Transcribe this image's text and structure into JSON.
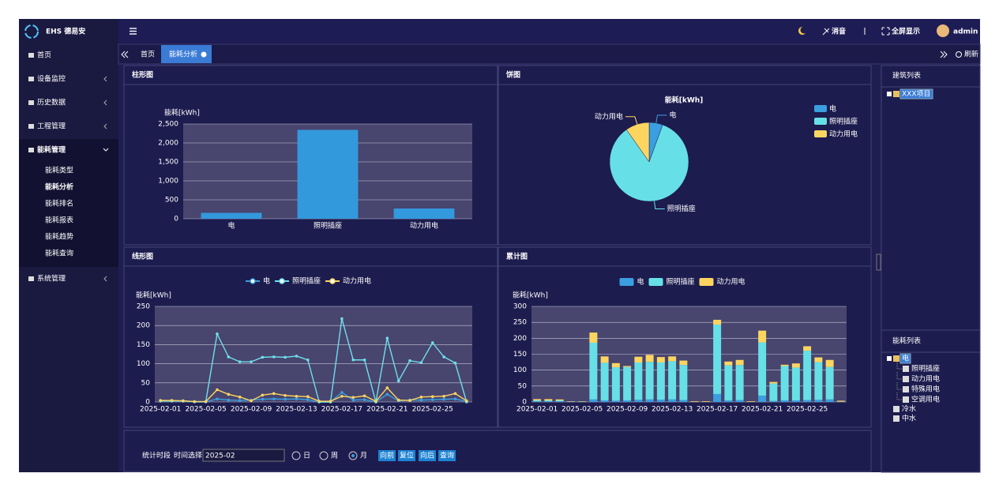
{
  "sidebar": {
    "brand": "EHS 德易安",
    "menu": [
      {
        "label": "首页"
      },
      {
        "label": "设备监控"
      },
      {
        "label": "历史数据"
      },
      {
        "label": "工程管理"
      },
      {
        "label": "能耗管理",
        "active_child": 1,
        "children": [
          "能耗类型",
          "能耗分析",
          "能耗排名",
          "能耗报表",
          "能耗趋势",
          "能耗查询"
        ]
      },
      {
        "label": "系统管理"
      }
    ]
  },
  "topbar": {
    "mute": "消音",
    "fullscreen": "全屏显示",
    "user": "admin"
  },
  "tabs": {
    "items": [
      "首页",
      "能耗分析"
    ],
    "active": 1,
    "refresh": "刷新"
  },
  "chart_data": [
    {
      "type": "bar",
      "panel_title": "柱形图",
      "y_label": "能耗[kWh]",
      "categories": [
        "电",
        "照明插座",
        "动力用电"
      ],
      "values": [
        155,
        2345,
        270
      ],
      "color": "#3399dd",
      "ylim": [
        0,
        2500
      ],
      "yticks": [
        0,
        500,
        {
          "value": 1000,
          "label": "1,000"
        },
        {
          "value": 1500,
          "label": "1,500"
        },
        {
          "value": 2000,
          "label": "2,000"
        },
        {
          "value": 2500,
          "label": "2,500"
        }
      ],
      "grid": true
    },
    {
      "type": "pie",
      "panel_title": "饼图",
      "title": "能耗[kWh]",
      "categories": [
        "电",
        "照明插座",
        "动力用电"
      ],
      "values": [
        155,
        2345,
        270
      ],
      "colors": [
        "#3a9ee0",
        "#66e0e6",
        "#fcd561"
      ]
    },
    {
      "type": "line",
      "panel_title": "线形图",
      "y_label": "能耗[kWh]",
      "categories": [
        "2025-02-01",
        null,
        null,
        null,
        "2025-02-05",
        null,
        null,
        null,
        "2025-02-09",
        null,
        null,
        null,
        "2025-02-13",
        null,
        null,
        null,
        "2025-02-17",
        null,
        null,
        null,
        "2025-02-21",
        null,
        null,
        null,
        "2025-02-25",
        null,
        null,
        null
      ],
      "series": [
        {
          "name": "电",
          "color": "#3a9ee0",
          "values": [
            2,
            2,
            2,
            0,
            0,
            8,
            5,
            4,
            5,
            7,
            8,
            7,
            8,
            6,
            0,
            0,
            25,
            5,
            6,
            0,
            20,
            3,
            5,
            5,
            6,
            7,
            8,
            1
          ]
        },
        {
          "name": "照明插座",
          "color": "#6ee0ea",
          "values": [
            3,
            3,
            3,
            1,
            1,
            178,
            118,
            105,
            105,
            117,
            118,
            117,
            120,
            110,
            0,
            0,
            218,
            110,
            110,
            0,
            167,
            55,
            108,
            103,
            155,
            118,
            102,
            0
          ]
        },
        {
          "name": "动力用电",
          "color": "#fcd561",
          "values": [
            4,
            4,
            3,
            1,
            1,
            32,
            20,
            13,
            3,
            18,
            22,
            17,
            15,
            14,
            2,
            2,
            15,
            12,
            16,
            2,
            37,
            5,
            4,
            13,
            14,
            15,
            22,
            3
          ]
        }
      ],
      "ylim": [
        0,
        250
      ],
      "yticks": [
        0,
        50,
        100,
        150,
        200,
        250
      ],
      "grid": true
    },
    {
      "type": "bar",
      "stacked": true,
      "panel_title": "累计图",
      "y_label": "能耗[kWh]",
      "categories": [
        "2025-02-01",
        null,
        null,
        null,
        "2025-02-05",
        null,
        null,
        null,
        "2025-02-09",
        null,
        null,
        null,
        "2025-02-13",
        null,
        null,
        null,
        "2025-02-17",
        null,
        null,
        null,
        "2025-02-21",
        null,
        null,
        null,
        "2025-02-25",
        null,
        null,
        null
      ],
      "series": [
        {
          "name": "电",
          "color": "#3a9ee0",
          "values": [
            2,
            2,
            2,
            0,
            0,
            8,
            5,
            4,
            5,
            7,
            8,
            7,
            8,
            6,
            0,
            0,
            25,
            5,
            6,
            0,
            20,
            3,
            5,
            5,
            6,
            7,
            8,
            1
          ]
        },
        {
          "name": "照明插座",
          "color": "#66e0e6",
          "values": [
            3,
            3,
            3,
            1,
            1,
            178,
            118,
            105,
            105,
            117,
            118,
            117,
            120,
            110,
            0,
            0,
            218,
            110,
            110,
            0,
            167,
            55,
            108,
            103,
            155,
            118,
            102,
            0
          ]
        },
        {
          "name": "动力用电",
          "color": "#fcd561",
          "values": [
            4,
            4,
            3,
            1,
            1,
            32,
            20,
            13,
            3,
            18,
            22,
            17,
            15,
            14,
            2,
            2,
            15,
            12,
            16,
            2,
            37,
            5,
            4,
            13,
            14,
            15,
            22,
            3
          ]
        }
      ],
      "ylim": [
        0,
        300
      ],
      "yticks": [
        0,
        50,
        100,
        150,
        200,
        250,
        300
      ],
      "grid": true
    }
  ],
  "form": {
    "period_label": "统计时段",
    "time_label": "时间选择",
    "time_value": "2025-02",
    "options": [
      "日",
      "周",
      "月"
    ],
    "selected": 2,
    "buttons": [
      "向前",
      "复位",
      "向后",
      "查询"
    ]
  },
  "building_list": {
    "title": "建筑列表",
    "nodes": [
      "XXX项目"
    ]
  },
  "energy_list": {
    "title": "能耗列表",
    "nodes": [
      {
        "label": "电",
        "children": [
          "照明插座",
          "动力用电",
          "特殊用电",
          "空调用电"
        ]
      },
      {
        "label": "冷水"
      },
      {
        "label": "中水"
      }
    ]
  }
}
